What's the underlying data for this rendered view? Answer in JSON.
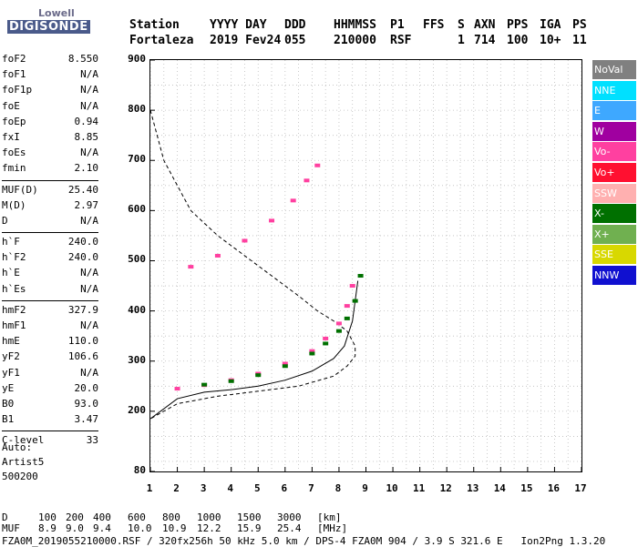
{
  "logo": {
    "top": "Lowell",
    "bottom": "DIGISONDE"
  },
  "header": {
    "labels": [
      "Station",
      "YYYY DAY",
      "DDD",
      "HHMMSS",
      "P1",
      "FFS",
      "S",
      "AXN",
      "PPS",
      "IGA",
      "PS"
    ],
    "values": [
      "Fortaleza",
      "2019 Fev24",
      "055",
      "210000",
      "RSF",
      "1",
      "714",
      "100",
      "10+",
      "11"
    ]
  },
  "params": [
    {
      "name": "foF2",
      "value": "8.550"
    },
    {
      "name": "foF1",
      "value": "N/A"
    },
    {
      "name": "foF1p",
      "value": "N/A"
    },
    {
      "name": "foE",
      "value": "N/A"
    },
    {
      "name": "foEp",
      "value": "0.94"
    },
    {
      "name": "fxI",
      "value": "8.85"
    },
    {
      "name": "foEs",
      "value": "N/A"
    },
    {
      "name": "fmin",
      "value": "2.10"
    },
    {
      "name": "MUF(D)",
      "value": "25.40"
    },
    {
      "name": "M(D)",
      "value": "2.97"
    },
    {
      "name": "D",
      "value": "N/A"
    },
    {
      "name": "h`F",
      "value": "240.0"
    },
    {
      "name": "h`F2",
      "value": "240.0"
    },
    {
      "name": "h`E",
      "value": "N/A"
    },
    {
      "name": "h`Es",
      "value": "N/A"
    },
    {
      "name": "hmF2",
      "value": "327.9"
    },
    {
      "name": "hmF1",
      "value": "N/A"
    },
    {
      "name": "hmE",
      "value": "110.0"
    },
    {
      "name": "yF2",
      "value": "106.6"
    },
    {
      "name": "yF1",
      "value": "N/A"
    },
    {
      "name": "yE",
      "value": "20.0"
    },
    {
      "name": "B0",
      "value": "93.0"
    },
    {
      "name": "B1",
      "value": "3.47"
    },
    {
      "name": "C-level",
      "value": "33"
    }
  ],
  "auto": {
    "line1": "Auto:",
    "line2": "Artist5",
    "line3": "500200"
  },
  "legend": [
    {
      "name": "NoVal",
      "color": "#808080"
    },
    {
      "name": "NNE",
      "color": "#00e0ff"
    },
    {
      "name": "E",
      "color": "#3ea8ff"
    },
    {
      "name": "W",
      "color": "#a000a0"
    },
    {
      "name": "Vo-",
      "color": "#ff40a0"
    },
    {
      "name": "Vo+",
      "color": "#ff1030"
    },
    {
      "name": "SSW",
      "color": "#ffb0b0"
    },
    {
      "name": "X-",
      "color": "#007000"
    },
    {
      "name": "X+",
      "color": "#70b050"
    },
    {
      "name": "SSE",
      "color": "#d8d800"
    },
    {
      "name": "NNW",
      "color": "#1010d0"
    }
  ],
  "footer": {
    "d_label": "D",
    "d_values": [
      "100",
      "200",
      "400",
      "600",
      "800",
      "1000",
      "1500",
      "3000",
      "[km]"
    ],
    "muf_label": "MUF",
    "muf_values": [
      "8.9",
      "9.0",
      "9.4",
      "10.0",
      "10.9",
      "12.2",
      "15.9",
      "25.4",
      "[MHz]"
    ],
    "info": "FZA0M_2019055210000.RSF / 320fx256h 50 kHz 5.0 km / DPS-4 FZA0M 904 / 3.9 S 321.6 E   Ion2Png 1.3.20"
  },
  "chart_data": {
    "type": "scatter",
    "xlim": [
      1,
      17
    ],
    "ylim": [
      80,
      900
    ],
    "x_ticks": [
      "1",
      "2",
      "3",
      "4",
      "5",
      "6",
      "7",
      "8",
      "9",
      "10",
      "11",
      "12",
      "13",
      "14",
      "15",
      "16",
      "17"
    ],
    "y_ticks": [
      "80",
      "200",
      "300",
      "400",
      "500",
      "600",
      "700",
      "800",
      "900"
    ],
    "grid": true,
    "series": [
      {
        "name": "Vo-",
        "color": "#ff40a0",
        "x": [
          2.0,
          3.0,
          4.0,
          5.0,
          6.0,
          7.0,
          7.5,
          8.0,
          8.3,
          8.5
        ],
        "y": [
          245,
          252,
          262,
          275,
          295,
          320,
          345,
          375,
          410,
          450
        ]
      },
      {
        "name": "X-",
        "color": "#007000",
        "x": [
          3.0,
          4.0,
          5.0,
          6.0,
          7.0,
          7.5,
          8.0,
          8.3,
          8.6,
          8.8
        ],
        "y": [
          253,
          260,
          272,
          290,
          315,
          335,
          360,
          385,
          420,
          470
        ]
      },
      {
        "name": "Vo-",
        "color": "#ff40a0",
        "x": [
          2.5,
          3.5,
          4.5,
          5.5,
          6.3,
          6.8,
          7.2
        ],
        "y": [
          488,
          510,
          540,
          580,
          620,
          660,
          690
        ]
      }
    ],
    "profile_dashed": {
      "x": [
        1.0,
        1.5,
        2.5,
        3.5,
        4.5,
        5.5,
        6.5,
        7.2,
        7.8,
        8.3,
        8.6,
        8.6,
        8.3,
        7.8,
        6.5,
        5.0,
        3.5,
        2.0,
        1.0
      ],
      "y": [
        800,
        700,
        600,
        550,
        510,
        470,
        430,
        400,
        380,
        360,
        330,
        310,
        290,
        270,
        250,
        240,
        230,
        215,
        185
      ]
    },
    "profile_solid": {
      "x": [
        1.0,
        2.0,
        3.0,
        4.0,
        5.0,
        6.0,
        7.0,
        7.8,
        8.2,
        8.5,
        8.7
      ],
      "y": [
        185,
        225,
        238,
        243,
        250,
        262,
        280,
        305,
        330,
        380,
        460
      ]
    }
  }
}
